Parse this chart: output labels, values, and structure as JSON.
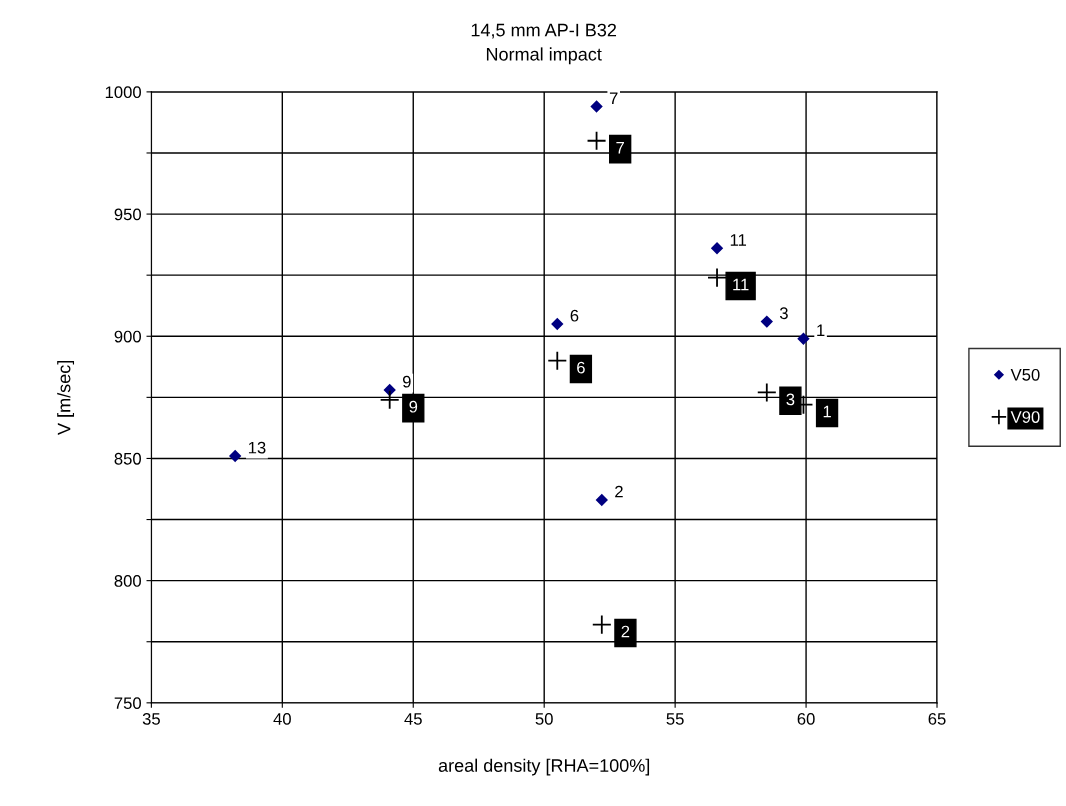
{
  "chart_data": {
    "type": "scatter",
    "title": "14,5 mm AP-I B32",
    "subtitle": "Normal impact",
    "xlabel": "areal density [RHA=100%]",
    "ylabel": "V [m/sec]",
    "annotations": [
      {
        "text": "1",
        "x": 59.9,
        "y": 899
      },
      {
        "text": "2",
        "x": 52.2,
        "y": 833
      },
      {
        "text": "3",
        "x": 58.5,
        "y": 906
      },
      {
        "text": "6",
        "x": 50.5,
        "y": 905
      },
      {
        "text": "7",
        "x": 52.0,
        "y": 994
      },
      {
        "text": "9",
        "x": 44.1,
        "y": 878
      },
      {
        "text": "11",
        "x": 56.6,
        "y": 936
      },
      {
        "text": "13",
        "x": 38.2,
        "y": 851
      },
      {
        "text": "1",
        "x": 59.9,
        "y": 872
      },
      {
        "text": "2",
        "x": 52.2,
        "y": 782
      },
      {
        "text": "3",
        "x": 58.5,
        "y": 877
      },
      {
        "text": "6",
        "x": 50.5,
        "y": 890
      },
      {
        "text": "7",
        "x": 52.0,
        "y": 980
      },
      {
        "text": "9",
        "x": 44.1,
        "y": 874
      },
      {
        "text": "11",
        "x": 56.6,
        "y": 924
      }
    ],
    "series": [
      {
        "name": "V50",
        "color": "#000080",
        "marker": "diamond",
        "x": [
          59.9,
          52.2,
          58.5,
          50.5,
          52.0,
          44.1,
          56.6,
          38.2
        ],
        "values": [
          899,
          833,
          906,
          905,
          994,
          878,
          936,
          851
        ]
      },
      {
        "name": "V90",
        "color": "#000000",
        "marker": "cross",
        "x": [
          59.9,
          52.2,
          58.5,
          50.5,
          52.0,
          44.1,
          56.6
        ],
        "values": [
          872,
          782,
          877,
          890,
          980,
          874,
          924
        ]
      }
    ],
    "xlim": [
      35,
      65
    ],
    "xticks": [
      35,
      40,
      45,
      50,
      55,
      60,
      65
    ],
    "ylim": [
      750,
      1000
    ],
    "yticks": [
      750,
      {
        "value": 775,
        "label": null
      },
      800,
      {
        "value": 825,
        "label": null
      },
      850,
      {
        "value": 875,
        "label": null
      },
      900,
      {
        "value": 925,
        "label": null
      },
      950,
      {
        "value": 975,
        "label": null
      },
      1000
    ],
    "grid": true,
    "legend": "right"
  }
}
